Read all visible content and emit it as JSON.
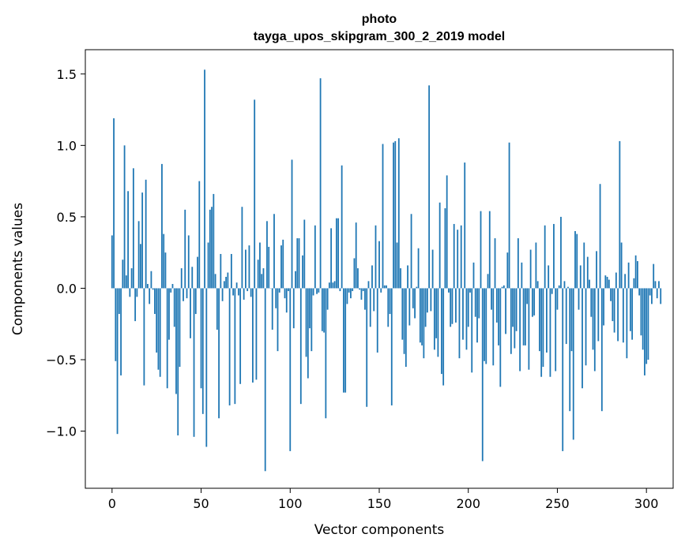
{
  "chart_data": {
    "type": "bar",
    "title": "photo",
    "subtitle": "tayga_upos_skipgram_300_2_2019 model",
    "xlabel": "Vector components",
    "ylabel": "Components values",
    "xlim": [
      -15,
      315
    ],
    "ylim": [
      -1.4,
      1.67
    ],
    "xticks": [
      0,
      50,
      100,
      150,
      200,
      250,
      300
    ],
    "xtick_labels": [
      "0",
      "50",
      "100",
      "150",
      "200",
      "250",
      "300"
    ],
    "yticks": [
      1.5,
      1.0,
      0.5,
      0.0,
      -0.5,
      -1.0
    ],
    "ytick_labels": [
      "1.5",
      "1.0",
      "0.5",
      "0.0",
      "−0.5",
      "−1.0"
    ],
    "grid": false,
    "bar_color": "#1f77b4",
    "values": [
      0.37,
      1.19,
      -0.51,
      -1.02,
      -0.18,
      -0.61,
      0.2,
      1.0,
      0.09,
      0.68,
      -0.06,
      0.14,
      0.84,
      -0.23,
      -0.06,
      0.47,
      0.31,
      0.67,
      -0.68,
      0.76,
      0.03,
      -0.11,
      0.12,
      -0.01,
      -0.18,
      -0.45,
      -0.57,
      -0.62,
      0.87,
      0.38,
      0.25,
      -0.7,
      -0.36,
      -0.03,
      0.03,
      -0.27,
      -0.74,
      -1.03,
      -0.55,
      0.14,
      -0.09,
      0.55,
      -0.07,
      0.37,
      -0.35,
      0.15,
      -1.04,
      -0.18,
      0.22,
      0.75,
      -0.7,
      -0.88,
      1.53,
      -1.11,
      0.32,
      0.55,
      0.57,
      0.66,
      0.1,
      -0.29,
      -0.91,
      0.24,
      -0.09,
      0.05,
      0.08,
      0.11,
      -0.82,
      0.24,
      -0.05,
      -0.81,
      0.04,
      -0.05,
      -0.67,
      0.57,
      -0.08,
      0.27,
      -0.02,
      0.3,
      -0.06,
      -0.66,
      1.32,
      -0.64,
      0.2,
      0.32,
      0.1,
      0.14,
      -1.28,
      0.47,
      0.29,
      0.0,
      -0.29,
      0.52,
      -0.14,
      -0.44,
      -0.03,
      0.3,
      0.34,
      -0.07,
      -0.17,
      -0.02,
      -1.14,
      0.9,
      -0.28,
      0.12,
      0.35,
      0.35,
      -0.81,
      0.23,
      0.48,
      -0.48,
      -0.63,
      -0.28,
      -0.44,
      -0.05,
      0.44,
      -0.04,
      -0.03,
      1.47,
      -0.3,
      -0.31,
      -0.91,
      -0.15,
      0.04,
      0.42,
      0.04,
      0.05,
      0.49,
      0.49,
      -0.02,
      0.86,
      -0.73,
      -0.73,
      -0.11,
      -0.03,
      -0.07,
      -0.02,
      0.21,
      0.46,
      0.14,
      -0.01,
      -0.08,
      -0.02,
      -0.15,
      -0.83,
      0.05,
      -0.27,
      0.16,
      -0.16,
      0.44,
      -0.45,
      0.33,
      -0.03,
      1.01,
      0.02,
      0.02,
      -0.27,
      -0.18,
      -0.82,
      1.02,
      1.03,
      0.32,
      1.05,
      0.14,
      -0.36,
      -0.46,
      -0.55,
      0.16,
      -0.26,
      0.52,
      -0.14,
      -0.21,
      0.01,
      0.28,
      -0.38,
      -0.4,
      -0.49,
      -0.27,
      -0.17,
      1.42,
      -0.16,
      0.27,
      -0.43,
      -0.35,
      -0.48,
      0.6,
      -0.6,
      -0.68,
      0.56,
      0.79,
      -0.03,
      -0.27,
      -0.25,
      0.45,
      -0.24,
      0.41,
      -0.49,
      0.44,
      -0.36,
      0.88,
      -0.43,
      -0.27,
      -0.03,
      -0.59,
      0.18,
      -0.2,
      -0.38,
      -0.21,
      0.54,
      -1.21,
      -0.51,
      -0.53,
      0.1,
      0.54,
      -0.15,
      -0.54,
      0.35,
      -0.24,
      -0.4,
      -0.69,
      0.01,
      0.02,
      -0.32,
      0.25,
      1.02,
      -0.46,
      -0.27,
      -0.42,
      -0.3,
      0.35,
      -0.58,
      0.18,
      -0.4,
      -0.4,
      -0.11,
      -0.57,
      0.27,
      -0.2,
      -0.19,
      0.32,
      0.05,
      -0.44,
      -0.62,
      -0.55,
      0.44,
      -0.45,
      0.16,
      -0.62,
      -0.04,
      0.45,
      -0.58,
      -0.15,
      0.02,
      0.5,
      -1.14,
      0.05,
      -0.39,
      0.01,
      -0.86,
      -0.44,
      -1.06,
      0.4,
      0.38,
      -0.15,
      0.16,
      -0.7,
      0.32,
      -0.54,
      0.22,
      0.06,
      -0.2,
      -0.43,
      -0.58,
      0.26,
      -0.37,
      0.73,
      -0.86,
      -0.26,
      0.09,
      0.08,
      0.06,
      -0.09,
      -0.23,
      -0.31,
      0.11,
      -0.37,
      1.03,
      0.32,
      -0.38,
      0.1,
      -0.49,
      0.18,
      -0.3,
      -0.36,
      0.07,
      0.23,
      0.19,
      -0.05,
      -0.33,
      -0.43,
      -0.61,
      -0.53,
      -0.5,
      -0.05,
      -0.11,
      0.17,
      0.05,
      -0.07,
      0.05,
      -0.11
    ],
    "rendered_bar_values": [
      0.37,
      1.19,
      -0.51,
      -1.02,
      -0.18,
      -0.61,
      0.2,
      1.0,
      0.09,
      0.68,
      -0.06,
      0.14,
      0.84,
      -0.23,
      -0.06,
      0.47,
      0.31,
      0.67,
      -0.68,
      0.76,
      0.03,
      -0.11,
      0.12,
      -0.01,
      -0.18,
      -0.45,
      -0.57,
      -0.62,
      0.87,
      0.38,
      0.25,
      -0.7,
      -0.36,
      -0.03,
      0.03,
      -0.27,
      -0.74,
      -1.03,
      -0.55,
      0.14,
      -0.09,
      0.55,
      -0.07,
      0.37,
      -0.35,
      0.15,
      -1.04,
      -0.18,
      0.22,
      0.75,
      -0.7,
      -0.88,
      1.53,
      -1.11,
      0.32,
      0.55,
      0.57,
      0.66,
      0.1,
      -0.29,
      -0.91,
      0.24,
      -0.09,
      0.05,
      0.08,
      0.11,
      -0.82,
      0.24,
      -0.05,
      -0.81,
      0.04,
      -0.05,
      -0.67,
      0.57,
      -0.08,
      0.27,
      -0.02,
      0.3,
      -0.06,
      -0.66,
      1.32,
      -0.64,
      0.2,
      0.32,
      0.1,
      0.14,
      -1.28,
      0.47,
      0.29,
      0.0,
      -0.29,
      0.52,
      -0.14,
      -0.44,
      -0.03,
      0.3,
      0.34,
      -0.07,
      -0.17,
      -0.02,
      -1.14,
      0.9,
      -0.28,
      0.12,
      0.35,
      0.35,
      -0.81,
      0.23,
      0.48,
      -0.48,
      -0.63,
      -0.28,
      -0.44,
      -0.05,
      0.44,
      -0.04,
      -0.03,
      1.47,
      -0.3,
      -0.31,
      -0.91,
      -0.15,
      0.04,
      0.42,
      0.04,
      0.05,
      0.49,
      0.49,
      -0.02,
      0.86,
      -0.73,
      -0.73,
      -0.11,
      -0.03,
      -0.07,
      -0.02,
      0.21,
      0.46,
      0.14,
      -0.01,
      -0.08,
      -0.02,
      -0.15,
      -0.83,
      0.05,
      -0.27,
      0.16,
      -0.16,
      0.44,
      -0.45,
      0.33,
      -0.03,
      1.01,
      0.02,
      0.02,
      -0.27,
      -0.18,
      -0.82,
      1.02,
      1.03,
      0.32,
      1.05,
      0.14,
      -0.36,
      -0.46,
      -0.55,
      0.16,
      -0.26,
      0.52,
      -0.14,
      -0.21,
      0.01,
      0.28,
      -0.38,
      -0.4,
      -0.49,
      -0.27,
      -0.17,
      1.42,
      -0.16,
      0.27,
      -0.43,
      -0.35,
      -0.48,
      0.6,
      -0.6,
      -0.68,
      0.56,
      0.79,
      -0.03,
      -0.27,
      -0.25,
      0.45,
      -0.24,
      0.41,
      -0.49,
      0.44,
      -0.36,
      0.88,
      -0.43,
      -0.27,
      -0.03,
      -0.59,
      0.18,
      -0.2,
      -0.38,
      -0.21,
      0.54,
      -1.21,
      -0.51,
      -0.53,
      0.1,
      0.54,
      -0.15,
      -0.54,
      0.35,
      -0.24,
      -0.4,
      -0.69,
      0.01,
      0.02,
      -0.32,
      0.25,
      1.02,
      -0.46,
      -0.27,
      -0.42,
      -0.3,
      0.35,
      -0.58,
      0.18,
      -0.4,
      -0.4,
      -0.11,
      -0.57,
      0.27,
      -0.2,
      -0.19,
      0.32,
      0.05,
      -0.44,
      -0.62,
      -0.55,
      0.44,
      -0.45,
      0.16,
      -0.62,
      -0.04,
      0.45,
      -0.58,
      -0.15,
      0.02,
      0.5,
      -1.14,
      0.05,
      -0.39,
      0.01,
      -0.86,
      -0.44,
      -1.06,
      0.4,
      0.38,
      -0.15,
      0.16,
      -0.7,
      0.32,
      -0.54,
      0.22,
      0.06,
      -0.2,
      -0.43,
      -0.58,
      0.26,
      -0.37,
      0.73,
      -0.86,
      -0.26,
      0.09,
      0.08,
      0.06,
      -0.09,
      -0.23,
      -0.31,
      0.11,
      -0.37,
      1.03,
      0.32,
      -0.38,
      0.1,
      -0.49,
      0.18,
      -0.3,
      -0.36,
      0.07,
      0.23,
      0.19,
      -0.05,
      -0.33,
      -0.43,
      -0.61,
      -0.53,
      -0.5,
      -0.05,
      -0.11,
      0.17,
      0.05,
      -0.07,
      0.05,
      -0.11
    ]
  }
}
